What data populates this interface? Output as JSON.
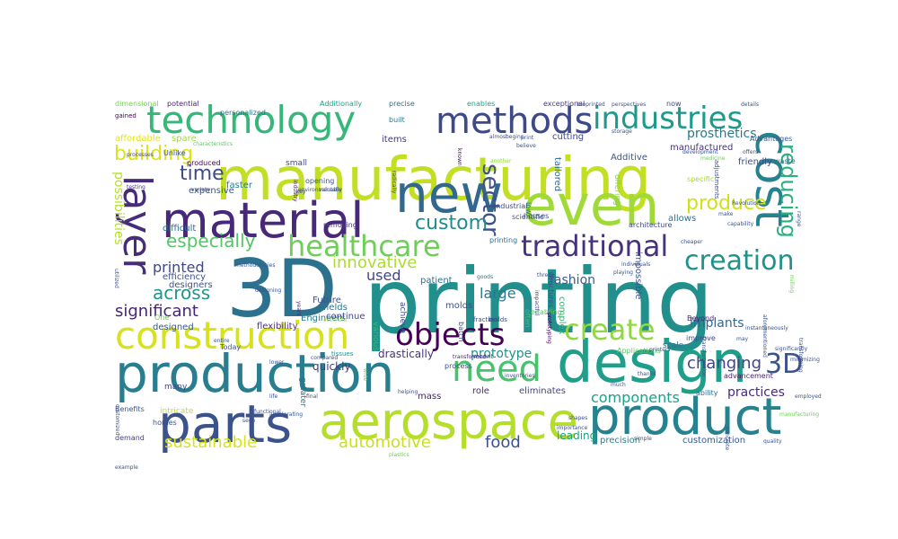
{
  "cloud": {
    "words": [
      {
        "text": "printing",
        "color": "#21908d"
      },
      {
        "text": "manufacturing",
        "color": "#c2df23"
      },
      {
        "text": "3D",
        "color": "#2c728e"
      },
      {
        "text": "production",
        "color": "#287d8e"
      },
      {
        "text": "parts",
        "color": "#3b528b"
      },
      {
        "text": "aerospace",
        "color": "#b5de2b"
      },
      {
        "text": "design",
        "color": "#1f9e89"
      },
      {
        "text": "product",
        "color": "#26828e"
      },
      {
        "text": "material",
        "color": "#482878"
      },
      {
        "text": "technology",
        "color": "#35b779"
      },
      {
        "text": "new",
        "color": "#31688e"
      },
      {
        "text": "even",
        "color": "#a0da39"
      },
      {
        "text": "methods",
        "color": "#3e4989"
      },
      {
        "text": "industries",
        "color": "#1f9a8a"
      },
      {
        "text": "construction",
        "color": "#d8e219"
      },
      {
        "text": "healthcare",
        "color": "#6ece58"
      },
      {
        "text": "traditional",
        "color": "#46327e"
      },
      {
        "text": "layer",
        "color": "#472c7a"
      },
      {
        "text": "cost",
        "color": "#26828e"
      },
      {
        "text": "need",
        "color": "#4ac16d"
      },
      {
        "text": "objects",
        "color": "#440154"
      },
      {
        "text": "create",
        "color": "#90d743"
      },
      {
        "text": "creation",
        "color": "#21918c"
      },
      {
        "text": "3D",
        "color": "#3b528b"
      },
      {
        "text": "reducing",
        "color": "#2ab07f"
      },
      {
        "text": "sector",
        "color": "#3b528b"
      },
      {
        "text": "building",
        "color": "#dde318"
      },
      {
        "text": "time",
        "color": "#3e4a89"
      },
      {
        "text": "custom",
        "color": "#228c8d"
      },
      {
        "text": "produce",
        "color": "#d0e11c"
      },
      {
        "text": "especially",
        "color": "#54c568"
      },
      {
        "text": "across",
        "color": "#1f958b"
      },
      {
        "text": "innovative",
        "color": "#addc30"
      },
      {
        "text": "printed",
        "color": "#3f4788"
      },
      {
        "text": "significant",
        "color": "#482475"
      },
      {
        "text": "sustainable",
        "color": "#d8e219"
      },
      {
        "text": "automotive",
        "color": "#c8e020"
      },
      {
        "text": "food",
        "color": "#3b528b"
      },
      {
        "text": "components",
        "color": "#1fa088"
      },
      {
        "text": "changing",
        "color": "#414487"
      },
      {
        "text": "practices",
        "color": "#472a7a"
      },
      {
        "text": "prosthetics",
        "color": "#29798e"
      },
      {
        "text": "fashion",
        "color": "#365d8d"
      },
      {
        "text": "prototype",
        "color": "#20928c"
      },
      {
        "text": "large",
        "color": "#2a778e"
      },
      {
        "text": "used",
        "color": "#414487"
      },
      {
        "text": "implants",
        "color": "#31688e"
      },
      {
        "text": "possibilities",
        "color": "#b5de2b"
      },
      {
        "text": "drastically",
        "color": "#46337f"
      },
      {
        "text": "quickly",
        "color": "#443983"
      },
      {
        "text": "leading",
        "color": "#1fa088"
      },
      {
        "text": "customization",
        "color": "#38598c"
      },
      {
        "text": "precision",
        "color": "#26828e"
      },
      {
        "text": "allows",
        "color": "#2d708e"
      },
      {
        "text": "friendly",
        "color": "#3e4a89"
      },
      {
        "text": "Additive",
        "color": "#39568c"
      },
      {
        "text": "tailored",
        "color": "#2f6c8e"
      },
      {
        "text": "cutting",
        "color": "#3e4989"
      },
      {
        "text": "items",
        "color": "#453781"
      },
      {
        "text": "manufactured",
        "color": "#46337f"
      },
      {
        "text": "spare",
        "color": "#9fda3a"
      },
      {
        "text": "affordable",
        "color": "#e5e419"
      },
      {
        "text": "expensive",
        "color": "#39568c"
      },
      {
        "text": "faster",
        "color": "#287d8e"
      },
      {
        "text": "difficult",
        "color": "#2e6e8e"
      },
      {
        "text": "efficiency",
        "color": "#3a538b"
      },
      {
        "text": "designers",
        "color": "#3a538b"
      },
      {
        "text": "designed",
        "color": "#39568c"
      },
      {
        "text": "flexibility",
        "color": "#4e2d87"
      },
      {
        "text": "Engineers",
        "color": "#2a788e"
      },
      {
        "text": "Future",
        "color": "#3b528b"
      },
      {
        "text": "fields",
        "color": "#2c738e"
      },
      {
        "text": "continue",
        "color": "#3e4989"
      },
      {
        "text": "mass",
        "color": "#481b6d"
      },
      {
        "text": "role",
        "color": "#482878"
      },
      {
        "text": "eliminates",
        "color": "#3f4788"
      },
      {
        "text": "patient",
        "color": "#2c718e"
      },
      {
        "text": "molds",
        "color": "#3b528b"
      },
      {
        "text": "complex",
        "color": "#31b57b"
      },
      {
        "text": "impossible",
        "color": "#3b528b"
      },
      {
        "text": "Beyond",
        "color": "#482475"
      },
      {
        "text": "scale",
        "color": "#2c728e"
      },
      {
        "text": "ability",
        "color": "#2d708e"
      },
      {
        "text": "improve",
        "color": "#3e4989"
      },
      {
        "text": "advancement",
        "color": "#481b6d"
      },
      {
        "text": "Applications",
        "color": "#5ec962"
      },
      {
        "text": "architecture",
        "color": "#3e4a89"
      },
      {
        "text": "personalized",
        "color": "#2b758e"
      },
      {
        "text": "Additionally",
        "color": "#1f9e89"
      },
      {
        "text": "precise",
        "color": "#2d708e"
      },
      {
        "text": "enables",
        "color": "#1fa188"
      },
      {
        "text": "exceptional",
        "color": "#443983"
      },
      {
        "text": "now",
        "color": "#3e4989"
      },
      {
        "text": "waste",
        "color": "#31688e"
      },
      {
        "text": "Advantages",
        "color": "#365c8d"
      },
      {
        "text": "specific",
        "color": "#a8db34"
      },
      {
        "text": "offering",
        "color": "#86d549"
      },
      {
        "text": "small",
        "color": "#3e4989"
      },
      {
        "text": "many",
        "color": "#3e4989"
      },
      {
        "text": "intricate",
        "color": "#c0df25"
      },
      {
        "text": "homes",
        "color": "#3b528b"
      },
      {
        "text": "demand",
        "color": "#433d84"
      },
      {
        "text": "greater",
        "color": "#2e6e8e"
      },
      {
        "text": "various",
        "color": "#35b779"
      },
      {
        "text": "achieve",
        "color": "#3e4989"
      },
      {
        "text": "One",
        "color": "#6ece58"
      },
      {
        "text": "Benefits",
        "color": "#38598c"
      },
      {
        "text": "Today",
        "color": "#3a538b"
      },
      {
        "text": "potential",
        "color": "#481f70"
      },
      {
        "text": "dimensional",
        "color": "#7ad151"
      },
      {
        "text": "gained",
        "color": "#440154"
      },
      {
        "text": "produced",
        "color": "#440154"
      },
      {
        "text": "Unlike",
        "color": "#3b528b"
      },
      {
        "text": "processes",
        "color": "#3e4989"
      },
      {
        "text": "testing",
        "color": "#443a83"
      },
      {
        "text": "variety",
        "color": "#3f4788"
      },
      {
        "text": "characteristics",
        "color": "#5ec962"
      },
      {
        "text": "opening",
        "color": "#3b528b"
      },
      {
        "text": "industry",
        "color": "#481769"
      },
      {
        "text": "key",
        "color": "#3e4989"
      },
      {
        "text": "removing",
        "color": "#443983"
      },
      {
        "text": "valuable",
        "color": "#3b528b"
      },
      {
        "text": "environmentally",
        "color": "#3b528b"
      },
      {
        "text": "years",
        "color": "#482878"
      },
      {
        "text": "built",
        "color": "#2a788e"
      },
      {
        "text": "printing",
        "color": "#2c728e"
      },
      {
        "text": "industrial",
        "color": "#3e4989"
      },
      {
        "text": "scientific",
        "color": "#3b528b"
      },
      {
        "text": "houses",
        "color": "#3b528b"
      },
      {
        "text": "another",
        "color": "#90d743"
      },
      {
        "text": "radically",
        "color": "#3e4989"
      },
      {
        "text": "low",
        "color": "#2c728e"
      },
      {
        "text": "known",
        "color": "#440154"
      },
      {
        "text": "impactful",
        "color": "#3b528b"
      },
      {
        "text": "three",
        "color": "#3b528b"
      },
      {
        "text": "often",
        "color": "#4ac16d"
      },
      {
        "text": "transformed",
        "color": "#482878"
      },
      {
        "text": "batch",
        "color": "#3b528b"
      },
      {
        "text": "builds",
        "color": "#3e4989"
      },
      {
        "text": "enabling",
        "color": "#5ec962"
      },
      {
        "text": "fraction",
        "color": "#3e4989"
      },
      {
        "text": "goods",
        "color": "#2a788e"
      },
      {
        "text": "process",
        "color": "#3b528b"
      },
      {
        "text": "recent",
        "color": "#3e4989"
      },
      {
        "text": "prototyping",
        "color": "#440154"
      },
      {
        "text": "structures",
        "color": "#3b528b"
      },
      {
        "text": "tissues",
        "color": "#21918c"
      },
      {
        "text": "wide",
        "color": "#6ece58"
      },
      {
        "text": "compared",
        "color": "#3b528b"
      },
      {
        "text": "lower",
        "color": "#3b528b"
      },
      {
        "text": "final",
        "color": "#3b528b"
      },
      {
        "text": "helping",
        "color": "#3b528b"
      },
      {
        "text": "plastics",
        "color": "#6ece58"
      },
      {
        "text": "accelerating",
        "color": "#3b528b"
      },
      {
        "text": "life",
        "color": "#3b528b"
      },
      {
        "text": "seen",
        "color": "#3b528b"
      },
      {
        "text": "functional",
        "color": "#3b528b"
      },
      {
        "text": "entire",
        "color": "#3b528b"
      },
      {
        "text": "example",
        "color": "#3b528b"
      },
      {
        "text": "customized",
        "color": "#3b528b"
      },
      {
        "text": "utilized",
        "color": "#3b528b"
      },
      {
        "text": "methodologies",
        "color": "#3b528b"
      },
      {
        "text": "designing",
        "color": "#3b528b"
      },
      {
        "text": "accurate",
        "color": "#b5de2b"
      },
      {
        "text": "bioprinted",
        "color": "#3b528b"
      },
      {
        "text": "perspectives",
        "color": "#3b528b"
      },
      {
        "text": "storage",
        "color": "#3b528b"
      },
      {
        "text": "medicine",
        "color": "#6ece58"
      },
      {
        "text": "details",
        "color": "#3b528b"
      },
      {
        "text": "development",
        "color": "#3b528b"
      },
      {
        "text": "adjustments",
        "color": "#3b528b"
      },
      {
        "text": "make",
        "color": "#3b528b"
      },
      {
        "text": "Revolution",
        "color": "#3b528b"
      },
      {
        "text": "capability",
        "color": "#3b528b"
      },
      {
        "text": "range",
        "color": "#3b528b"
      },
      {
        "text": "milling",
        "color": "#6ece58"
      },
      {
        "text": "transforming",
        "color": "#3b528b"
      },
      {
        "text": "aforementioned",
        "color": "#3b528b"
      },
      {
        "text": "instantaneously",
        "color": "#3b528b"
      },
      {
        "text": "transformation",
        "color": "#3b528b"
      },
      {
        "text": "may",
        "color": "#3b528b"
      },
      {
        "text": "concrete",
        "color": "#3b528b"
      },
      {
        "text": "minimizing",
        "color": "#3b528b"
      },
      {
        "text": "employed",
        "color": "#3b528b"
      },
      {
        "text": "manufacturing",
        "color": "#6ece58"
      },
      {
        "text": "quality",
        "color": "#3b528b"
      },
      {
        "text": "simple",
        "color": "#3b528b"
      },
      {
        "text": "importance",
        "color": "#3b528b"
      },
      {
        "text": "shapes",
        "color": "#3b528b"
      },
      {
        "text": "thanks",
        "color": "#3b528b"
      },
      {
        "text": "much",
        "color": "#3b528b"
      },
      {
        "text": "individuals",
        "color": "#3b528b"
      },
      {
        "text": "playing",
        "color": "#3b528b"
      },
      {
        "text": "inventories",
        "color": "#3b528b"
      },
      {
        "text": "significantly",
        "color": "#3b528b"
      },
      {
        "text": "printers",
        "color": "#3b528b"
      },
      {
        "text": "offers",
        "color": "#3b528b"
      },
      {
        "text": "cheaper",
        "color": "#3b528b"
      },
      {
        "text": "almost",
        "color": "#3b528b"
      },
      {
        "text": "believe",
        "color": "#3b528b"
      },
      {
        "text": "begins",
        "color": "#3b528b"
      },
      {
        "text": "print",
        "color": "#3b528b"
      },
      {
        "text": "everything",
        "color": "#3b528b"
      }
    ]
  }
}
